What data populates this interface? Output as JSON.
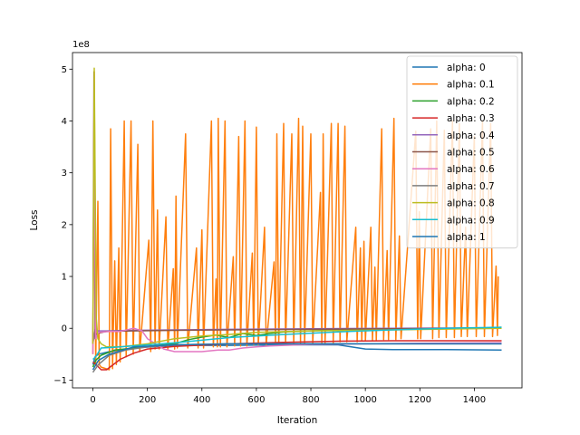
{
  "chart_data": {
    "type": "line",
    "xlabel": "Iteration",
    "ylabel": "Loss",
    "y_scale_label": "1e8",
    "xlim": [
      -75,
      1575
    ],
    "ylim": [
      -1.15,
      5.32
    ],
    "x_ticks": [
      0,
      200,
      400,
      600,
      800,
      1000,
      1200,
      1400
    ],
    "x_tick_labels": [
      "0",
      "200",
      "400",
      "600",
      "800",
      "1000",
      "1200",
      "1400"
    ],
    "y_ticks": [
      -1,
      0,
      1,
      2,
      3,
      4,
      5
    ],
    "y_tick_labels": [
      "−1",
      "0",
      "1",
      "2",
      "3",
      "4",
      "5"
    ],
    "legend_location": "top-right",
    "series": [
      {
        "name": "alpha: 0",
        "color": "#1f77b4",
        "points": [
          [
            0,
            -0.7
          ],
          [
            8,
            -0.55
          ],
          [
            20,
            -0.5
          ],
          [
            60,
            -0.45
          ],
          [
            150,
            -0.38
          ],
          [
            300,
            -0.33
          ],
          [
            500,
            -0.33
          ],
          [
            700,
            -0.32
          ],
          [
            900,
            -0.32
          ],
          [
            1000,
            -0.4
          ],
          [
            1100,
            -0.41
          ],
          [
            1300,
            -0.41
          ],
          [
            1500,
            -0.42
          ]
        ]
      },
      {
        "name": "alpha: 0.1",
        "color": "#ff7f0e",
        "points": [
          [
            0,
            -0.5
          ],
          [
            5,
            4.95
          ],
          [
            10,
            -0.7
          ],
          [
            18,
            2.45
          ],
          [
            23,
            -0.7
          ],
          [
            30,
            -0.75
          ],
          [
            60,
            -0.8
          ],
          [
            65,
            3.85
          ],
          [
            72,
            -0.78
          ],
          [
            80,
            1.3
          ],
          [
            86,
            -0.7
          ],
          [
            95,
            1.55
          ],
          [
            100,
            -0.65
          ],
          [
            115,
            4.0
          ],
          [
            122,
            -0.55
          ],
          [
            140,
            4.0
          ],
          [
            148,
            -0.5
          ],
          [
            165,
            3.55
          ],
          [
            172,
            -0.45
          ],
          [
            205,
            1.7
          ],
          [
            212,
            -0.45
          ],
          [
            220,
            4.0
          ],
          [
            228,
            -0.4
          ],
          [
            237,
            2.28
          ],
          [
            243,
            -0.4
          ],
          [
            268,
            2.15
          ],
          [
            275,
            -0.4
          ],
          [
            295,
            1.15
          ],
          [
            300,
            -0.4
          ],
          [
            305,
            2.55
          ],
          [
            310,
            -0.38
          ],
          [
            340,
            3.75
          ],
          [
            348,
            -0.38
          ],
          [
            380,
            1.55
          ],
          [
            386,
            -0.38
          ],
          [
            400,
            1.9
          ],
          [
            406,
            -0.38
          ],
          [
            435,
            4.0
          ],
          [
            442,
            -0.36
          ],
          [
            452,
            0.95
          ],
          [
            457,
            -0.36
          ],
          [
            460,
            4.05
          ],
          [
            468,
            -0.36
          ],
          [
            485,
            4.0
          ],
          [
            492,
            -0.36
          ],
          [
            515,
            1.38
          ],
          [
            520,
            -0.34
          ],
          [
            535,
            3.7
          ],
          [
            542,
            -0.34
          ],
          [
            558,
            4.0
          ],
          [
            565,
            -0.34
          ],
          [
            585,
            1.45
          ],
          [
            590,
            -0.32
          ],
          [
            600,
            3.88
          ],
          [
            607,
            -0.32
          ],
          [
            630,
            1.95
          ],
          [
            636,
            -0.32
          ],
          [
            665,
            1.28
          ],
          [
            670,
            -0.3
          ],
          [
            675,
            3.75
          ],
          [
            682,
            -0.3
          ],
          [
            700,
            3.95
          ],
          [
            707,
            -0.3
          ],
          [
            730,
            3.75
          ],
          [
            737,
            -0.3
          ],
          [
            755,
            4.05
          ],
          [
            762,
            -0.28
          ],
          [
            770,
            3.9
          ],
          [
            777,
            -0.28
          ],
          [
            800,
            3.75
          ],
          [
            807,
            -0.28
          ],
          [
            835,
            2.62
          ],
          [
            840,
            -0.28
          ],
          [
            845,
            3.75
          ],
          [
            852,
            -0.28
          ],
          [
            875,
            3.95
          ],
          [
            882,
            -0.28
          ],
          [
            900,
            3.95
          ],
          [
            907,
            -0.26
          ],
          [
            925,
            3.9
          ],
          [
            932,
            -0.26
          ],
          [
            965,
            1.95
          ],
          [
            970,
            -0.26
          ],
          [
            982,
            1.55
          ],
          [
            987,
            -0.24
          ],
          [
            995,
            1.68
          ],
          [
            1000,
            -0.24
          ],
          [
            1020,
            1.95
          ],
          [
            1026,
            -0.24
          ],
          [
            1035,
            1.18
          ],
          [
            1040,
            -0.24
          ],
          [
            1060,
            3.85
          ],
          [
            1067,
            -0.22
          ],
          [
            1080,
            1.5
          ],
          [
            1085,
            -0.22
          ],
          [
            1105,
            4.05
          ],
          [
            1112,
            -0.22
          ],
          [
            1125,
            1.78
          ],
          [
            1131,
            -0.2
          ],
          [
            1185,
            3.8
          ],
          [
            1192,
            -0.2
          ],
          [
            1198,
            2.25
          ],
          [
            1203,
            -0.2
          ],
          [
            1240,
            3.85
          ],
          [
            1247,
            -0.2
          ],
          [
            1262,
            4.0
          ],
          [
            1270,
            -0.18
          ],
          [
            1290,
            3.82
          ],
          [
            1297,
            -0.18
          ],
          [
            1320,
            4.0
          ],
          [
            1327,
            -0.18
          ],
          [
            1345,
            3.95
          ],
          [
            1352,
            -0.16
          ],
          [
            1368,
            1.95
          ],
          [
            1374,
            -0.16
          ],
          [
            1400,
            3.7
          ],
          [
            1407,
            -0.16
          ],
          [
            1430,
            4.0
          ],
          [
            1437,
            -0.16
          ],
          [
            1460,
            3.95
          ],
          [
            1467,
            -0.16
          ],
          [
            1480,
            1.2
          ],
          [
            1485,
            -0.14
          ],
          [
            1488,
            1.0
          ]
        ]
      },
      {
        "name": "alpha: 0.2",
        "color": "#2ca02c",
        "points": [
          [
            0,
            -0.75
          ],
          [
            10,
            -0.62
          ],
          [
            30,
            -0.52
          ],
          [
            80,
            -0.42
          ],
          [
            200,
            -0.35
          ],
          [
            300,
            -0.3
          ],
          [
            350,
            -0.22
          ],
          [
            400,
            -0.17
          ],
          [
            450,
            -0.13
          ],
          [
            500,
            -0.18
          ],
          [
            550,
            -0.1
          ],
          [
            600,
            -0.14
          ],
          [
            650,
            -0.1
          ],
          [
            700,
            -0.07
          ],
          [
            800,
            -0.05
          ],
          [
            900,
            -0.03
          ],
          [
            1000,
            -0.03
          ],
          [
            1200,
            -0.01
          ],
          [
            1400,
            0.0
          ],
          [
            1500,
            0.02
          ]
        ]
      },
      {
        "name": "alpha: 0.3",
        "color": "#d62728",
        "points": [
          [
            0,
            -0.65
          ],
          [
            15,
            -0.72
          ],
          [
            30,
            -0.8
          ],
          [
            50,
            -0.8
          ],
          [
            70,
            -0.72
          ],
          [
            100,
            -0.6
          ],
          [
            150,
            -0.48
          ],
          [
            200,
            -0.4
          ],
          [
            300,
            -0.35
          ],
          [
            500,
            -0.3
          ],
          [
            700,
            -0.27
          ],
          [
            900,
            -0.25
          ],
          [
            1100,
            -0.24
          ],
          [
            1300,
            -0.24
          ],
          [
            1500,
            -0.24
          ]
        ]
      },
      {
        "name": "alpha: 0.4",
        "color": "#9467bd",
        "points": [
          [
            0,
            -0.3
          ],
          [
            3,
            -0.2
          ],
          [
            8,
            -0.02
          ],
          [
            15,
            -0.05
          ],
          [
            50,
            -0.05
          ],
          [
            150,
            -0.04
          ],
          [
            300,
            -0.03
          ],
          [
            500,
            -0.02
          ],
          [
            800,
            -0.01
          ],
          [
            1100,
            0.0
          ],
          [
            1500,
            0.01
          ]
        ]
      },
      {
        "name": "alpha: 0.5",
        "color": "#8c564b",
        "points": [
          [
            0,
            -0.3
          ],
          [
            4,
            4.95
          ],
          [
            8,
            -0.2
          ],
          [
            15,
            -0.1
          ],
          [
            50,
            -0.06
          ],
          [
            150,
            -0.05
          ],
          [
            300,
            -0.04
          ],
          [
            500,
            -0.03
          ],
          [
            800,
            -0.02
          ],
          [
            1100,
            -0.01
          ],
          [
            1500,
            0.0
          ]
        ]
      },
      {
        "name": "alpha: 0.6",
        "color": "#e377c2",
        "points": [
          [
            0,
            -0.5
          ],
          [
            5,
            3.5
          ],
          [
            10,
            -0.2
          ],
          [
            20,
            -0.08
          ],
          [
            60,
            -0.06
          ],
          [
            100,
            -0.06
          ],
          [
            150,
            0.0
          ],
          [
            180,
            -0.05
          ],
          [
            200,
            -0.2
          ],
          [
            260,
            -0.4
          ],
          [
            300,
            -0.45
          ],
          [
            400,
            -0.45
          ],
          [
            460,
            -0.42
          ],
          [
            500,
            -0.42
          ],
          [
            550,
            -0.38
          ],
          [
            600,
            -0.36
          ],
          [
            650,
            -0.34
          ],
          [
            800,
            -0.31
          ],
          [
            1000,
            -0.3
          ],
          [
            1200,
            -0.29
          ],
          [
            1500,
            -0.28
          ]
        ]
      },
      {
        "name": "alpha: 0.7",
        "color": "#7f7f7f",
        "points": [
          [
            0,
            -0.85
          ],
          [
            20,
            -0.7
          ],
          [
            60,
            -0.52
          ],
          [
            120,
            -0.42
          ],
          [
            200,
            -0.36
          ],
          [
            300,
            -0.32
          ],
          [
            500,
            -0.3
          ],
          [
            800,
            -0.3
          ],
          [
            1100,
            -0.3
          ],
          [
            1500,
            -0.3
          ]
        ]
      },
      {
        "name": "alpha: 0.8",
        "color": "#bcbd22",
        "points": [
          [
            0,
            -0.3
          ],
          [
            5,
            5.02
          ],
          [
            12,
            0.2
          ],
          [
            18,
            -0.2
          ],
          [
            30,
            -0.3
          ],
          [
            50,
            -0.36
          ],
          [
            100,
            -0.36
          ],
          [
            200,
            -0.3
          ],
          [
            300,
            -0.2
          ],
          [
            400,
            -0.15
          ],
          [
            500,
            -0.12
          ],
          [
            600,
            -0.08
          ],
          [
            800,
            -0.05
          ],
          [
            1100,
            -0.03
          ],
          [
            1500,
            0.0
          ]
        ]
      },
      {
        "name": "alpha: 0.9",
        "color": "#17becf",
        "points": [
          [
            0,
            -0.6
          ],
          [
            10,
            -0.55
          ],
          [
            30,
            -0.38
          ],
          [
            100,
            -0.36
          ],
          [
            300,
            -0.28
          ],
          [
            500,
            -0.18
          ],
          [
            700,
            -0.12
          ],
          [
            900,
            -0.07
          ],
          [
            1100,
            -0.03
          ],
          [
            1300,
            0.0
          ],
          [
            1500,
            0.02
          ]
        ]
      },
      {
        "name": "alpha: 1",
        "color": "#1f77b4",
        "points": [
          [
            0,
            -0.8
          ],
          [
            20,
            -0.62
          ],
          [
            60,
            -0.5
          ],
          [
            150,
            -0.36
          ],
          [
            300,
            -0.32
          ],
          [
            500,
            -0.3
          ],
          [
            800,
            -0.3
          ],
          [
            1100,
            -0.3
          ],
          [
            1500,
            -0.3
          ]
        ]
      }
    ]
  }
}
